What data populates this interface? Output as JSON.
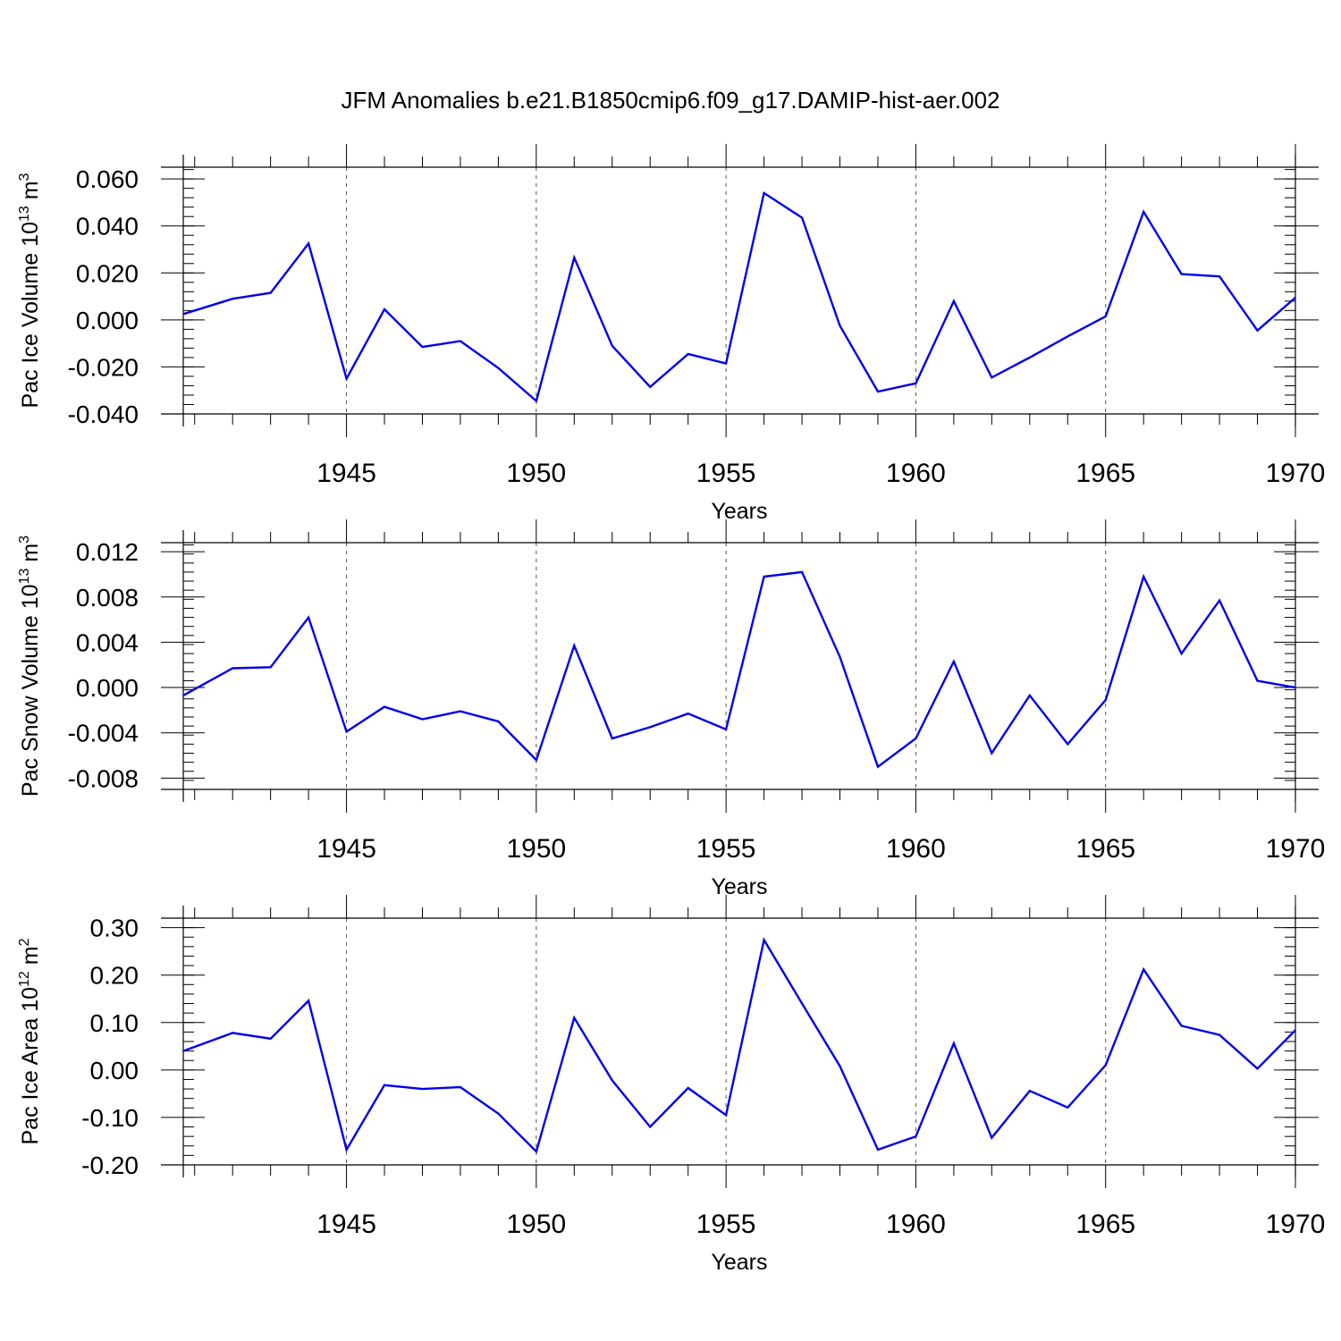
{
  "title": "JFM Anomalies b.e21.B1850cmip6.f09_g17.DAMIP-hist-aer.002",
  "chart_data": [
    {
      "type": "line",
      "ylabel_prefix": "Pac Ice Volume 10",
      "ylabel_exp": "13",
      "ylabel_unit": " m",
      "ylabel_unit_exp": "3",
      "xlabel": "Years",
      "xlim": [
        1940.7,
        1970
      ],
      "ylim": [
        -0.04,
        0.065
      ],
      "yticks": [
        -0.04,
        -0.02,
        0.0,
        0.02,
        0.04,
        0.06
      ],
      "ytick_labels": [
        "-0.040",
        "-0.020",
        "0.000",
        "0.020",
        "0.040",
        "0.060"
      ],
      "xticks": [
        1945,
        1950,
        1955,
        1960,
        1965,
        1970
      ],
      "xtick_labels": [
        "1945",
        "1950",
        "1955",
        "1960",
        "1965",
        "1970"
      ],
      "grid": "vertical dashed at labeled years",
      "color": "#0000ee",
      "x": [
        1940.7,
        1942,
        1943,
        1944,
        1945,
        1946,
        1947,
        1948,
        1949,
        1950,
        1951,
        1952,
        1953,
        1954,
        1955,
        1956,
        1957,
        1958,
        1959,
        1960,
        1961,
        1962,
        1963,
        1964,
        1965,
        1966,
        1967,
        1968,
        1969,
        1970
      ],
      "y": [
        0.0025,
        0.009,
        0.0115,
        0.0325,
        -0.025,
        0.0045,
        -0.0115,
        -0.009,
        -0.0205,
        -0.0345,
        0.0265,
        -0.011,
        -0.0285,
        -0.0145,
        -0.0185,
        0.054,
        0.0435,
        -0.0025,
        -0.0305,
        -0.027,
        0.008,
        -0.0245,
        -0.016,
        -0.007,
        0.0015,
        0.046,
        0.0195,
        0.0185,
        -0.0045,
        0.0095
      ]
    },
    {
      "type": "line",
      "ylabel_prefix": "Pac Snow Volume 10",
      "ylabel_exp": "13",
      "ylabel_unit": " m",
      "ylabel_unit_exp": "3",
      "xlabel": "Years",
      "xlim": [
        1940.7,
        1970
      ],
      "ylim": [
        -0.009,
        0.0128
      ],
      "yticks": [
        -0.008,
        -0.004,
        0.0,
        0.004,
        0.008,
        0.012
      ],
      "ytick_labels": [
        "-0.008",
        "-0.004",
        "0.000",
        "0.004",
        "0.008",
        "0.012"
      ],
      "xticks": [
        1945,
        1950,
        1955,
        1960,
        1965,
        1970
      ],
      "xtick_labels": [
        "1945",
        "1950",
        "1955",
        "1960",
        "1965",
        "1970"
      ],
      "grid": "vertical dashed at labeled years",
      "color": "#0000ee",
      "x": [
        1940.7,
        1942,
        1943,
        1944,
        1945,
        1946,
        1947,
        1948,
        1949,
        1950,
        1951,
        1952,
        1953,
        1954,
        1955,
        1956,
        1957,
        1958,
        1959,
        1960,
        1961,
        1962,
        1963,
        1964,
        1965,
        1966,
        1967,
        1968,
        1969,
        1970
      ],
      "y": [
        -0.0007,
        0.0017,
        0.0018,
        0.0062,
        -0.0039,
        -0.0017,
        -0.0028,
        -0.0021,
        -0.003,
        -0.0064,
        0.0037,
        -0.0045,
        -0.0035,
        -0.0023,
        -0.0037,
        0.0098,
        0.0102,
        0.0027,
        -0.007,
        -0.0045,
        0.0023,
        -0.0058,
        -0.0007,
        -0.005,
        -0.0011,
        0.0098,
        0.003,
        0.0077,
        0.0006,
        0.0
      ]
    },
    {
      "type": "line",
      "ylabel_prefix": "Pac Ice Area 10",
      "ylabel_exp": "12",
      "ylabel_unit": " m",
      "ylabel_unit_exp": "2",
      "xlabel": "Years",
      "xlim": [
        1940.7,
        1970
      ],
      "ylim": [
        -0.2,
        0.32
      ],
      "yticks": [
        -0.2,
        -0.1,
        0.0,
        0.1,
        0.2,
        0.3
      ],
      "ytick_labels": [
        "-0.20",
        "-0.10",
        "0.00",
        "0.10",
        "0.20",
        "0.30"
      ],
      "xticks": [
        1945,
        1950,
        1955,
        1960,
        1965,
        1970
      ],
      "xtick_labels": [
        "1945",
        "1950",
        "1955",
        "1960",
        "1965",
        "1970"
      ],
      "grid": "vertical dashed at labeled years",
      "color": "#0000ee",
      "x": [
        1940.7,
        1942,
        1943,
        1944,
        1945,
        1946,
        1947,
        1948,
        1949,
        1950,
        1951,
        1952,
        1953,
        1954,
        1955,
        1956,
        1957,
        1958,
        1959,
        1960,
        1961,
        1962,
        1963,
        1964,
        1965,
        1966,
        1967,
        1968,
        1969,
        1970
      ],
      "y": [
        0.04,
        0.078,
        0.066,
        0.146,
        -0.168,
        -0.032,
        -0.04,
        -0.036,
        -0.092,
        -0.172,
        0.11,
        -0.022,
        -0.12,
        -0.038,
        -0.095,
        0.274,
        0.14,
        0.008,
        -0.168,
        -0.14,
        0.056,
        -0.143,
        -0.044,
        -0.079,
        0.01,
        0.212,
        0.093,
        0.074,
        0.003,
        0.084
      ]
    }
  ]
}
